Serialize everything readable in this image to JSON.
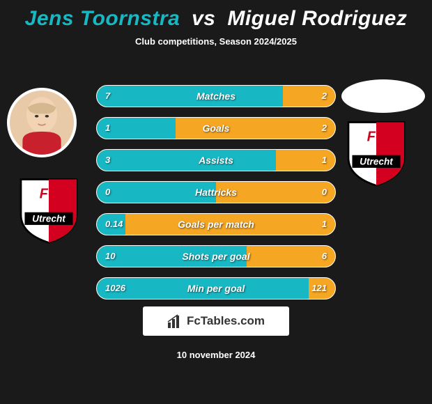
{
  "title": {
    "player1": "Jens Toornstra",
    "vs": "vs",
    "player2": "Miguel Rodriguez",
    "player1_color": "#17b8c4",
    "player2_color": "#ffffff"
  },
  "subtitle": "Club competitions, Season 2024/2025",
  "club": {
    "name": "FC Utrecht",
    "shield_red": "#d3001f",
    "shield_white": "#ffffff",
    "shield_black": "#000000",
    "text": "Utrecht"
  },
  "bars": {
    "left_color": "#17b8c4",
    "right_color": "#f5a623",
    "border_color": "#ffffff",
    "rows": [
      {
        "label": "Matches",
        "left_val": "7",
        "right_val": "2",
        "left_pct": 78,
        "right_pct": 22
      },
      {
        "label": "Goals",
        "left_val": "1",
        "right_val": "2",
        "left_pct": 33,
        "right_pct": 67
      },
      {
        "label": "Assists",
        "left_val": "3",
        "right_val": "1",
        "left_pct": 75,
        "right_pct": 25
      },
      {
        "label": "Hattricks",
        "left_val": "0",
        "right_val": "0",
        "left_pct": 50,
        "right_pct": 50
      },
      {
        "label": "Goals per match",
        "left_val": "0.14",
        "right_val": "1",
        "left_pct": 12,
        "right_pct": 88
      },
      {
        "label": "Shots per goal",
        "left_val": "10",
        "right_val": "6",
        "left_pct": 63,
        "right_pct": 37
      },
      {
        "label": "Min per goal",
        "left_val": "1026",
        "right_val": "121",
        "left_pct": 89,
        "right_pct": 11
      }
    ]
  },
  "footer": {
    "logo_text": "FcTables.com",
    "date": "10 november 2024"
  },
  "background_color": "#1a1a1a"
}
